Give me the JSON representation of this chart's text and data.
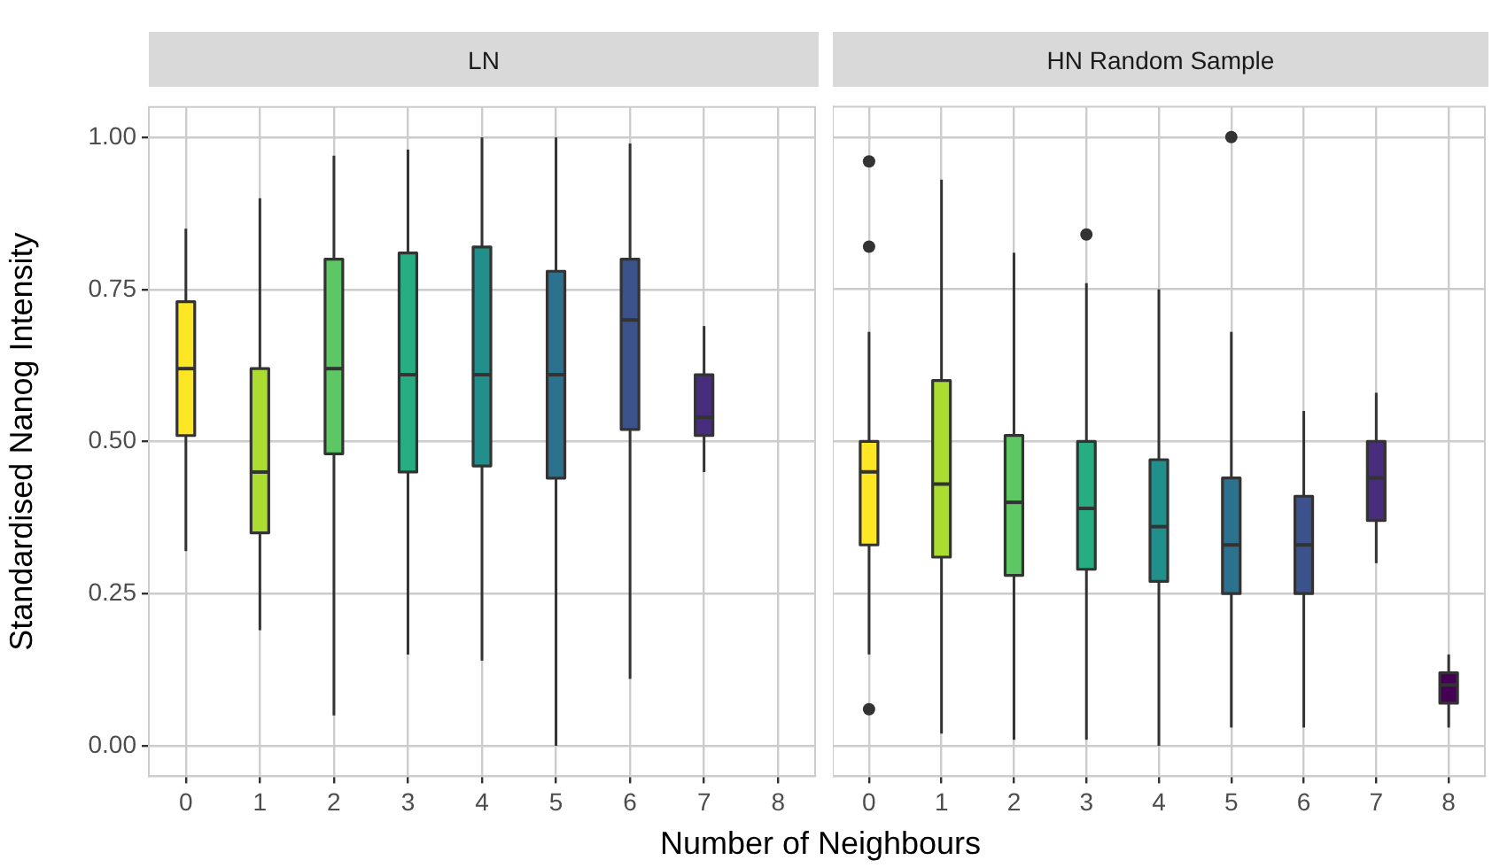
{
  "chart_data": [
    {
      "type": "box",
      "title": "LN",
      "ylabel": "Standardised Nanog Intensity",
      "xlabel": "Number of Neighbours",
      "categories": [
        "0",
        "1",
        "2",
        "3",
        "4",
        "5",
        "6",
        "7",
        "8"
      ],
      "colors": [
        "#fde725",
        "#aadc32",
        "#5dc863",
        "#27ad81",
        "#21908c",
        "#2c728e",
        "#3b528b",
        "#472d7b",
        null
      ],
      "boxes": [
        {
          "low": 0.32,
          "q1": 0.51,
          "median": 0.62,
          "q3": 0.73,
          "high": 0.85
        },
        {
          "low": 0.19,
          "q1": 0.35,
          "median": 0.45,
          "q3": 0.62,
          "high": 0.9
        },
        {
          "low": 0.05,
          "q1": 0.48,
          "median": 0.62,
          "q3": 0.8,
          "high": 0.97
        },
        {
          "low": 0.15,
          "q1": 0.45,
          "median": 0.61,
          "q3": 0.81,
          "high": 0.98
        },
        {
          "low": 0.14,
          "q1": 0.46,
          "median": 0.61,
          "q3": 0.82,
          "high": 1.0
        },
        {
          "low": 0.0,
          "q1": 0.44,
          "median": 0.61,
          "q3": 0.78,
          "high": 1.0
        },
        {
          "low": 0.11,
          "q1": 0.52,
          "median": 0.7,
          "q3": 0.8,
          "high": 0.99
        },
        {
          "low": 0.45,
          "q1": 0.51,
          "median": 0.54,
          "q3": 0.61,
          "high": 0.69
        },
        null
      ],
      "ylim": [
        -0.05,
        1.05
      ],
      "yticks": [
        {
          "value": 0,
          "label": "0.00"
        },
        0.25,
        {
          "value": 0.5,
          "label": "0.50"
        },
        0.75,
        {
          "value": 1,
          "label": "1.00"
        }
      ],
      "grid": true
    },
    {
      "type": "box",
      "title": "HN Random Sample",
      "categories": [
        "0",
        "1",
        "2",
        "3",
        "4",
        "5",
        "6",
        "7",
        "8"
      ],
      "colors": [
        "#fde725",
        "#aadc32",
        "#5dc863",
        "#27ad81",
        "#21908c",
        "#2c728e",
        "#3b528b",
        "#472d7b",
        "#440154"
      ],
      "boxes": [
        {
          "low": 0.15,
          "q1": 0.33,
          "median": 0.45,
          "q3": 0.5,
          "high": 0.68,
          "outliers": [
            0.96,
            0.82,
            0.06
          ]
        },
        {
          "low": 0.02,
          "q1": 0.31,
          "median": 0.43,
          "q3": 0.6,
          "high": 0.93
        },
        {
          "low": 0.01,
          "q1": 0.28,
          "median": 0.4,
          "q3": 0.51,
          "high": 0.81
        },
        {
          "low": 0.01,
          "q1": 0.29,
          "median": 0.39,
          "q3": 0.5,
          "high": 0.76,
          "outliers": [
            0.84
          ]
        },
        {
          "low": 0.0,
          "q1": 0.27,
          "median": 0.36,
          "q3": 0.47,
          "high": 0.75
        },
        {
          "low": 0.03,
          "q1": 0.25,
          "median": 0.33,
          "q3": 0.44,
          "high": 0.68,
          "outliers": [
            1.0
          ]
        },
        {
          "low": 0.03,
          "q1": 0.25,
          "median": 0.33,
          "q3": 0.41,
          "high": 0.55
        },
        {
          "low": 0.3,
          "q1": 0.37,
          "median": 0.44,
          "q3": 0.5,
          "high": 0.58
        },
        {
          "low": 0.03,
          "q1": 0.07,
          "median": 0.1,
          "q3": 0.12,
          "high": 0.15
        }
      ],
      "ylim": [
        -0.05,
        1.05
      ],
      "yticks": [
        0,
        0.25,
        0.5,
        0.75,
        1
      ],
      "grid": true,
      "tick_labels": "x"
    }
  ]
}
